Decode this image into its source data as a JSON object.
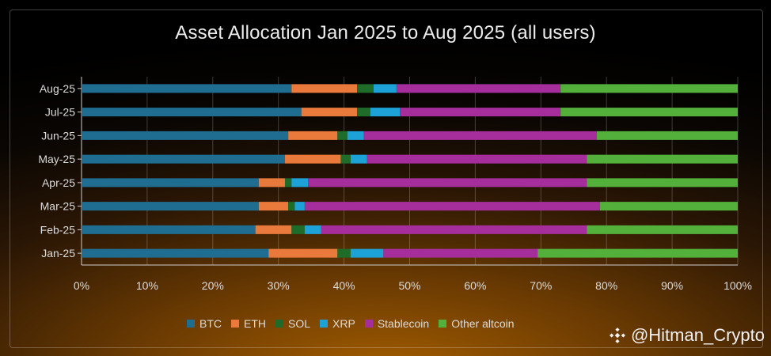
{
  "chart_data": {
    "type": "bar",
    "orientation": "horizontal",
    "stacked": true,
    "title": "Asset Allocation Jan 2025 to Aug 2025 (all users)",
    "categories": [
      "Jan-25",
      "Feb-25",
      "Mar-25",
      "Apr-25",
      "May-25",
      "Jun-25",
      "Jul-25",
      "Aug-25"
    ],
    "xlim": [
      0,
      100
    ],
    "x_ticks": [
      0,
      10,
      20,
      30,
      40,
      50,
      60,
      70,
      80,
      90,
      100
    ],
    "x_tick_labels": [
      "0%",
      "10%",
      "20%",
      "30%",
      "40%",
      "50%",
      "60%",
      "70%",
      "80%",
      "90%",
      "100%"
    ],
    "grid": "vertical",
    "legend_position": "bottom",
    "series": [
      {
        "name": "BTC",
        "color": "#1f6d91",
        "values": [
          28.5,
          26.5,
          27.0,
          27.0,
          31.0,
          31.5,
          33.5,
          32.0
        ]
      },
      {
        "name": "ETH",
        "color": "#e97a3b",
        "values": [
          10.5,
          5.5,
          4.5,
          4.0,
          8.5,
          7.5,
          8.5,
          10.0
        ]
      },
      {
        "name": "SOL",
        "color": "#1e6b2a",
        "values": [
          2.0,
          2.0,
          1.0,
          1.0,
          1.5,
          1.5,
          2.0,
          2.5
        ]
      },
      {
        "name": "XRP",
        "color": "#1da2d8",
        "values": [
          5.0,
          2.5,
          1.5,
          2.5,
          2.5,
          2.5,
          4.5,
          3.5
        ]
      },
      {
        "name": "Stablecoin",
        "color": "#a62e9c",
        "values": [
          23.5,
          40.5,
          45.0,
          42.5,
          33.5,
          35.5,
          24.5,
          25.0
        ]
      },
      {
        "name": "Other altcoin",
        "color": "#52b03b",
        "values": [
          30.5,
          23.0,
          21.0,
          23.0,
          23.0,
          21.5,
          27.0,
          27.0
        ]
      }
    ]
  },
  "watermark": {
    "text": "@Hitman_Crypto",
    "icon": "binance-diamond-icon"
  }
}
